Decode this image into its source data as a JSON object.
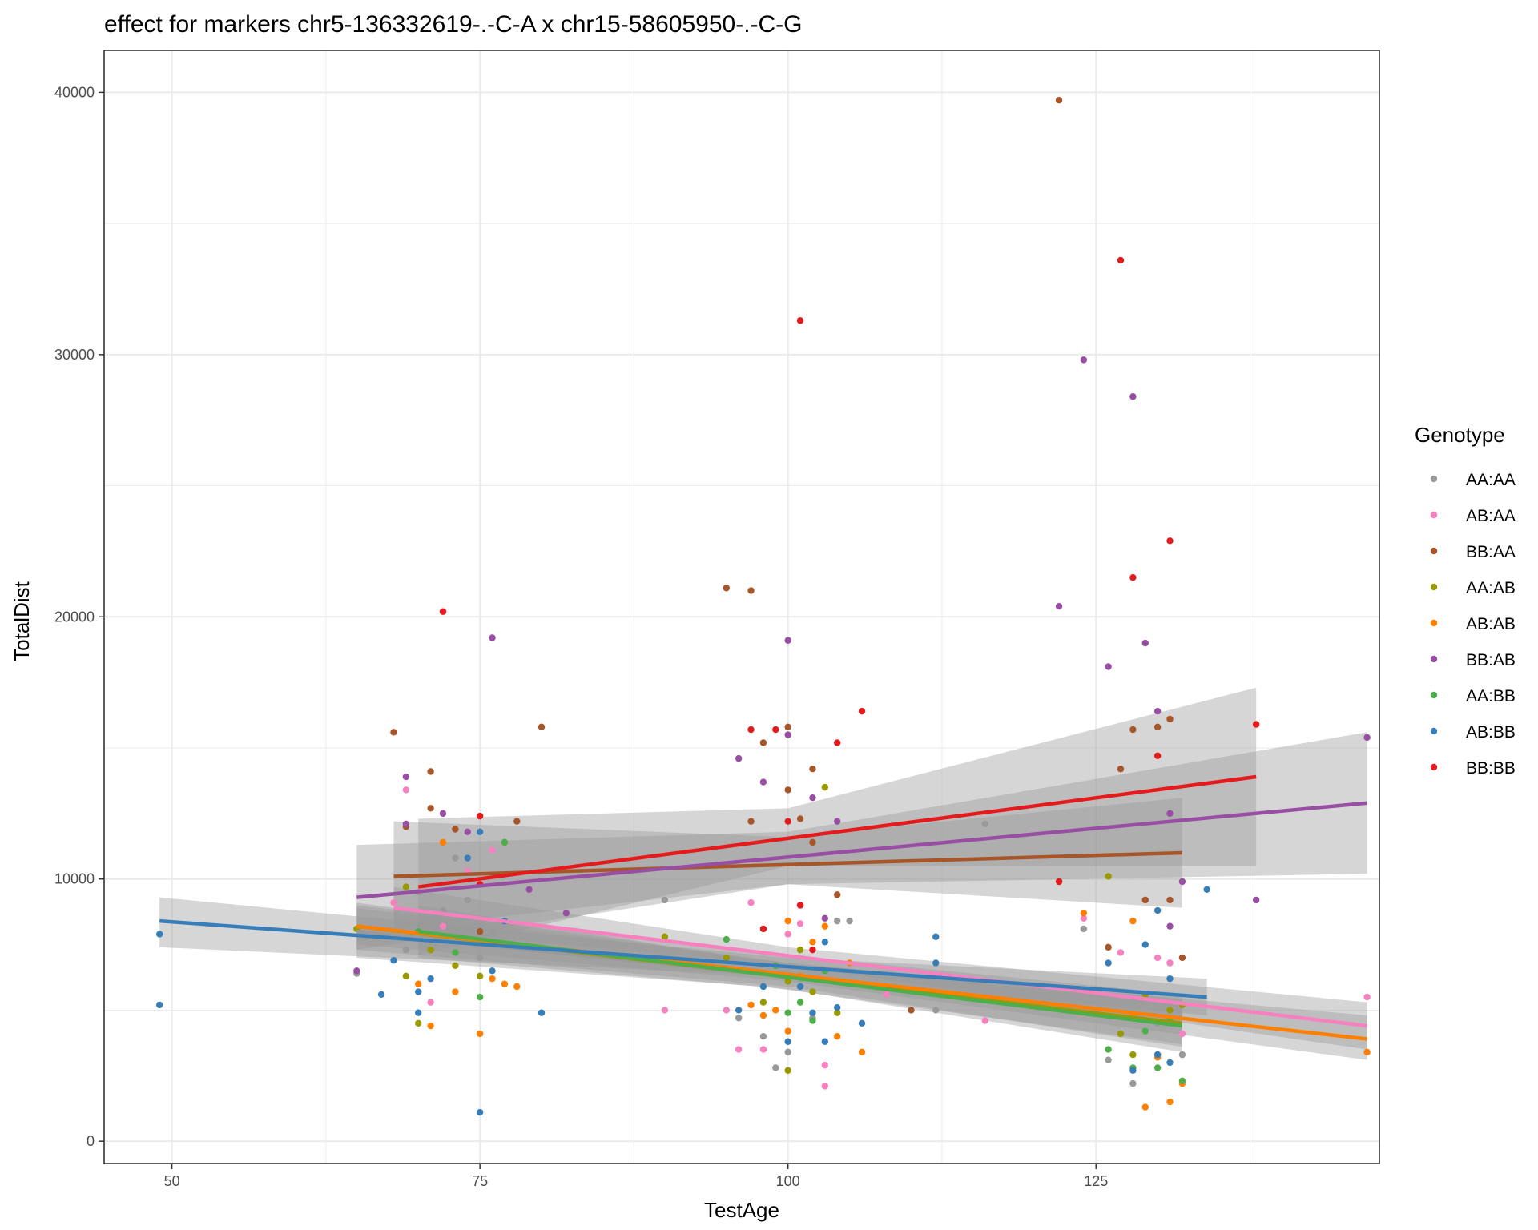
{
  "chart_data": {
    "type": "scatter",
    "title": "effect for markers chr5-136332619-.-C-A x chr15-58605950-.-C-G",
    "xlabel": "TestAge",
    "ylabel": "TotalDist",
    "xlim": [
      44.5,
      148
    ],
    "ylim": [
      -850,
      41600
    ],
    "x_ticks": [
      50,
      75,
      100,
      125
    ],
    "x_tick_labels": [
      "50",
      "75",
      "100",
      "125"
    ],
    "y_ticks": [
      0,
      10000,
      20000,
      30000,
      40000
    ],
    "y_tick_labels": [
      "0",
      "10000",
      "20000",
      "30000",
      "40000"
    ],
    "grid": true,
    "legend": {
      "title": "Genotype",
      "position": "right"
    },
    "series": [
      {
        "name": "AA:AA",
        "color": "#999999",
        "points": [
          [
            65,
            6400
          ],
          [
            69,
            7300
          ],
          [
            70,
            9500
          ],
          [
            72,
            8800
          ],
          [
            73,
            10800
          ],
          [
            74,
            9200
          ],
          [
            75,
            7000
          ],
          [
            76,
            8000
          ],
          [
            90,
            9200
          ],
          [
            96,
            4700
          ],
          [
            98,
            4000
          ],
          [
            99,
            2800
          ],
          [
            100,
            3400
          ],
          [
            101,
            6200
          ],
          [
            102,
            4700
          ],
          [
            104,
            8400
          ],
          [
            105,
            8400
          ],
          [
            112,
            5000
          ],
          [
            116,
            12100
          ],
          [
            124,
            8100
          ],
          [
            126,
            3100
          ],
          [
            128,
            2200
          ],
          [
            129,
            5500
          ],
          [
            130,
            4500
          ],
          [
            131,
            6800
          ],
          [
            132,
            3300
          ]
        ],
        "fit": [
          [
            65,
            8000
          ],
          [
            132,
            4700
          ]
        ],
        "ci": [
          [
            65,
            7000,
            9000
          ],
          [
            98,
            5900,
            7200
          ],
          [
            132,
            3700,
            5600
          ]
        ]
      },
      {
        "name": "AB:AA",
        "color": "#F781BF",
        "points": [
          [
            68,
            9100
          ],
          [
            69,
            13400
          ],
          [
            71,
            5300
          ],
          [
            72,
            8200
          ],
          [
            74,
            10300
          ],
          [
            75,
            9800
          ],
          [
            76,
            11100
          ],
          [
            90,
            5000
          ],
          [
            95,
            5000
          ],
          [
            96,
            3500
          ],
          [
            97,
            9100
          ],
          [
            98,
            3500
          ],
          [
            100,
            7900
          ],
          [
            101,
            8300
          ],
          [
            103,
            2100
          ],
          [
            103,
            2900
          ],
          [
            108,
            5600
          ],
          [
            116,
            4600
          ],
          [
            124,
            8500
          ],
          [
            127,
            7200
          ],
          [
            129,
            9200
          ],
          [
            130,
            7000
          ],
          [
            131,
            6800
          ],
          [
            132,
            4100
          ],
          [
            147,
            5500
          ]
        ],
        "fit": [
          [
            68,
            8900
          ],
          [
            147,
            4400
          ]
        ],
        "ci": [
          [
            68,
            8100,
            9700
          ],
          [
            100,
            6700,
            7400
          ],
          [
            147,
            3500,
            5300
          ]
        ]
      },
      {
        "name": "BB:AA",
        "color": "#A65628",
        "points": [
          [
            68,
            15600
          ],
          [
            69,
            12000
          ],
          [
            71,
            14100
          ],
          [
            71,
            12700
          ],
          [
            73,
            11900
          ],
          [
            75,
            8000
          ],
          [
            78,
            12200
          ],
          [
            80,
            15800
          ],
          [
            95,
            21100
          ],
          [
            97,
            21000
          ],
          [
            97,
            12200
          ],
          [
            98,
            15200
          ],
          [
            100,
            15800
          ],
          [
            100,
            13400
          ],
          [
            101,
            12300
          ],
          [
            102,
            14200
          ],
          [
            102,
            11400
          ],
          [
            104,
            9400
          ],
          [
            110,
            5000
          ],
          [
            122,
            39700
          ],
          [
            126,
            7400
          ],
          [
            127,
            14200
          ],
          [
            128,
            15700
          ],
          [
            129,
            9200
          ],
          [
            130,
            15800
          ],
          [
            131,
            16100
          ],
          [
            131,
            9200
          ],
          [
            132,
            7000
          ]
        ],
        "fit": [
          [
            68,
            10100
          ],
          [
            132,
            11000
          ]
        ],
        "ci": [
          [
            68,
            8100,
            12200
          ],
          [
            100,
            9800,
            11600
          ],
          [
            132,
            8900,
            13100
          ]
        ]
      },
      {
        "name": "AA:AB",
        "color": "#999900",
        "points": [
          [
            65,
            8100
          ],
          [
            69,
            6300
          ],
          [
            69,
            9700
          ],
          [
            70,
            4500
          ],
          [
            71,
            7300
          ],
          [
            73,
            6700
          ],
          [
            75,
            6300
          ],
          [
            77,
            11400
          ],
          [
            90,
            7800
          ],
          [
            95,
            7000
          ],
          [
            98,
            5300
          ],
          [
            100,
            2700
          ],
          [
            100,
            6100
          ],
          [
            101,
            7300
          ],
          [
            102,
            5700
          ],
          [
            103,
            13500
          ],
          [
            104,
            4900
          ],
          [
            126,
            10100
          ],
          [
            127,
            4100
          ],
          [
            128,
            3300
          ],
          [
            129,
            5600
          ],
          [
            130,
            3300
          ],
          [
            131,
            5000
          ],
          [
            132,
            5200
          ]
        ],
        "fit": [
          [
            65,
            8200
          ],
          [
            132,
            4500
          ]
        ],
        "ci": [
          [
            65,
            7300,
            9100
          ],
          [
            100,
            5900,
            6800
          ],
          [
            132,
            3600,
            5400
          ]
        ]
      },
      {
        "name": "AB:AB",
        "color": "#FF7F00",
        "points": [
          [
            70,
            6000
          ],
          [
            71,
            4400
          ],
          [
            72,
            11400
          ],
          [
            73,
            5700
          ],
          [
            75,
            4100
          ],
          [
            76,
            6200
          ],
          [
            77,
            6000
          ],
          [
            78,
            5900
          ],
          [
            97,
            5200
          ],
          [
            98,
            4800
          ],
          [
            99,
            5000
          ],
          [
            100,
            8400
          ],
          [
            100,
            4200
          ],
          [
            101,
            6300
          ],
          [
            102,
            7600
          ],
          [
            103,
            8200
          ],
          [
            104,
            4000
          ],
          [
            105,
            6800
          ],
          [
            106,
            3400
          ],
          [
            124,
            8700
          ],
          [
            128,
            8400
          ],
          [
            128,
            4800
          ],
          [
            129,
            1300
          ],
          [
            130,
            3200
          ],
          [
            131,
            1500
          ],
          [
            132,
            2200
          ],
          [
            147,
            3400
          ]
        ],
        "fit": [
          [
            65,
            8200
          ],
          [
            147,
            3900
          ]
        ],
        "ci": [
          [
            65,
            7500,
            8900
          ],
          [
            100,
            6100,
            6800
          ],
          [
            147,
            3100,
            4800
          ]
        ]
      },
      {
        "name": "BB:AB",
        "color": "#984EA3",
        "points": [
          [
            65,
            6500
          ],
          [
            69,
            13900
          ],
          [
            69,
            12100
          ],
          [
            72,
            12500
          ],
          [
            74,
            11800
          ],
          [
            76,
            19200
          ],
          [
            79,
            9600
          ],
          [
            82,
            8700
          ],
          [
            96,
            14600
          ],
          [
            98,
            13700
          ],
          [
            100,
            19100
          ],
          [
            100,
            15500
          ],
          [
            101,
            9000
          ],
          [
            102,
            13100
          ],
          [
            103,
            8500
          ],
          [
            104,
            12200
          ],
          [
            122,
            20400
          ],
          [
            124,
            29800
          ],
          [
            126,
            18100
          ],
          [
            128,
            28400
          ],
          [
            129,
            19000
          ],
          [
            130,
            16400
          ],
          [
            131,
            12500
          ],
          [
            131,
            8200
          ],
          [
            132,
            9900
          ],
          [
            138,
            9200
          ],
          [
            147,
            15400
          ]
        ],
        "fit": [
          [
            65,
            9300
          ],
          [
            147,
            12900
          ]
        ],
        "ci": [
          [
            65,
            7300,
            11300
          ],
          [
            100,
            9800,
            11800
          ],
          [
            147,
            10200,
            15600
          ]
        ]
      },
      {
        "name": "AA:BB",
        "color": "#4DAF4A",
        "points": [
          [
            70,
            8000
          ],
          [
            73,
            7200
          ],
          [
            75,
            5500
          ],
          [
            77,
            11400
          ],
          [
            95,
            7700
          ],
          [
            99,
            6700
          ],
          [
            100,
            4900
          ],
          [
            101,
            5300
          ],
          [
            102,
            4600
          ],
          [
            103,
            6500
          ],
          [
            126,
            3500
          ],
          [
            128,
            2800
          ],
          [
            129,
            4200
          ],
          [
            130,
            2800
          ],
          [
            131,
            4600
          ],
          [
            132,
            2300
          ]
        ],
        "fit": [
          [
            70,
            8000
          ],
          [
            132,
            4400
          ]
        ],
        "ci": [
          [
            70,
            7000,
            9000
          ],
          [
            100,
            5800,
            6700
          ],
          [
            132,
            3400,
            5300
          ]
        ]
      },
      {
        "name": "AB:BB",
        "color": "#377EB8",
        "points": [
          [
            49,
            7900
          ],
          [
            49,
            5200
          ],
          [
            67,
            5600
          ],
          [
            68,
            6900
          ],
          [
            70,
            5700
          ],
          [
            70,
            4900
          ],
          [
            71,
            6200
          ],
          [
            74,
            10800
          ],
          [
            75,
            1100
          ],
          [
            75,
            11800
          ],
          [
            76,
            6500
          ],
          [
            77,
            8400
          ],
          [
            80,
            4900
          ],
          [
            96,
            5000
          ],
          [
            98,
            5900
          ],
          [
            100,
            3800
          ],
          [
            101,
            5900
          ],
          [
            102,
            4900
          ],
          [
            103,
            7600
          ],
          [
            103,
            3800
          ],
          [
            104,
            5100
          ],
          [
            106,
            4500
          ],
          [
            112,
            7800
          ],
          [
            112,
            6800
          ],
          [
            126,
            6800
          ],
          [
            128,
            2700
          ],
          [
            129,
            7500
          ],
          [
            130,
            3300
          ],
          [
            130,
            8800
          ],
          [
            131,
            3000
          ],
          [
            131,
            6200
          ],
          [
            134,
            9600
          ]
        ],
        "fit": [
          [
            49,
            8400
          ],
          [
            134,
            5500
          ]
        ],
        "ci": [
          [
            49,
            7400,
            9300
          ],
          [
            100,
            6300,
            7000
          ],
          [
            134,
            4800,
            6200
          ]
        ]
      },
      {
        "name": "BB:BB",
        "color": "#E41A1C",
        "points": [
          [
            72,
            20200
          ],
          [
            75,
            12400
          ],
          [
            75,
            9800
          ],
          [
            97,
            15700
          ],
          [
            98,
            8100
          ],
          [
            99,
            15700
          ],
          [
            100,
            12200
          ],
          [
            101,
            31300
          ],
          [
            101,
            9000
          ],
          [
            102,
            7300
          ],
          [
            104,
            15200
          ],
          [
            106,
            16400
          ],
          [
            122,
            9900
          ],
          [
            127,
            33600
          ],
          [
            128,
            21500
          ],
          [
            130,
            14700
          ],
          [
            131,
            22900
          ],
          [
            138,
            15900
          ]
        ],
        "fit": [
          [
            70,
            9700
          ],
          [
            138,
            13900
          ]
        ],
        "ci": [
          [
            70,
            7100,
            12300
          ],
          [
            100,
            10500,
            12700
          ],
          [
            138,
            10500,
            17300
          ]
        ]
      }
    ]
  }
}
